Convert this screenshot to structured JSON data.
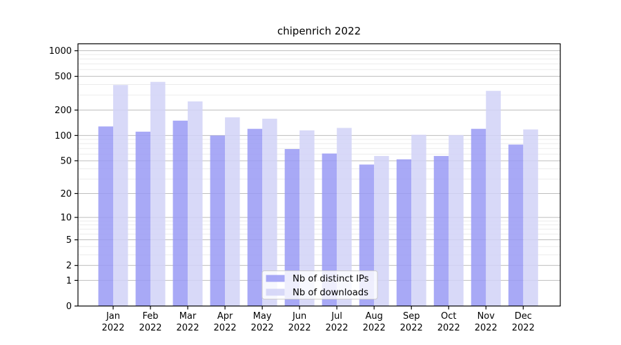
{
  "chart_data": {
    "type": "bar",
    "title": "chipenrich 2022",
    "categories": [
      "Jan",
      "Feb",
      "Mar",
      "Apr",
      "May",
      "Jun",
      "Jul",
      "Aug",
      "Sep",
      "Oct",
      "Nov",
      "Dec"
    ],
    "x_year_label": "2022",
    "series": [
      {
        "name": "Nb of distinct IPs",
        "color": "#a8a9f6",
        "values": [
          128,
          111,
          150,
          100,
          120,
          69,
          61,
          45,
          52,
          57,
          120,
          78
        ]
      },
      {
        "name": "Nb of downloads",
        "color": "#d8d9f8",
        "values": [
          395,
          430,
          253,
          164,
          158,
          115,
          123,
          57,
          102,
          101,
          337,
          118
        ]
      }
    ],
    "xlabel": "",
    "ylabel": "",
    "y_axis": {
      "scale": "log1p",
      "ylim": [
        0,
        1200
      ],
      "major_ticks": [
        0,
        1,
        2,
        5,
        10,
        20,
        50,
        100,
        200,
        500,
        1000
      ],
      "minor_ticks": [
        3,
        4,
        6,
        7,
        8,
        9,
        30,
        40,
        60,
        70,
        80,
        90,
        300,
        400,
        600,
        700,
        800,
        900
      ]
    },
    "grid": {
      "on": true,
      "major_color": "#bdbdbd",
      "minor_color": "#ebebeb"
    },
    "legend": {
      "position": "lower center",
      "background": "#ffffff",
      "border_color": "#cccccc"
    },
    "frame_color": "#000000",
    "text_color": "#000000"
  }
}
